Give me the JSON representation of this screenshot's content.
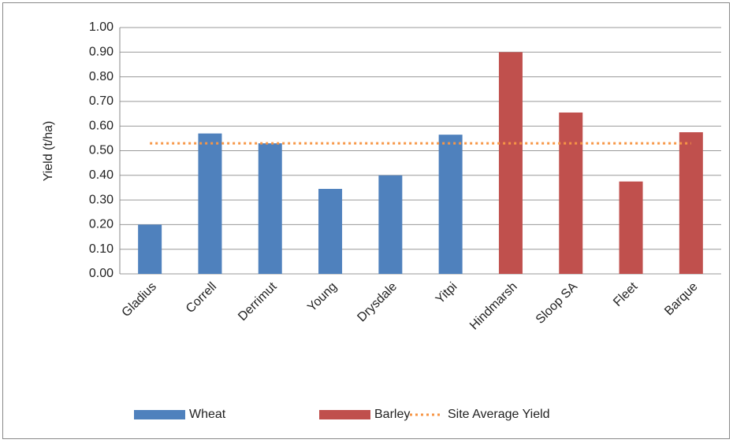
{
  "chart_data": {
    "type": "bar",
    "y_label": "Yield (t/ha)",
    "categories": [
      "Gladius",
      "Correll",
      "Derrimut",
      "Young",
      "Drysdale",
      "Yitpi",
      "Hindmarsh",
      "Sloop SA",
      "Fleet",
      "Barque"
    ],
    "series": [
      {
        "name": "Wheat",
        "type": "bar",
        "color": "#4f81bd",
        "values": [
          0.2,
          0.57,
          0.53,
          0.345,
          0.4,
          0.565,
          null,
          null,
          null,
          null
        ]
      },
      {
        "name": "Barley",
        "type": "bar",
        "color": "#c0504d",
        "values": [
          null,
          null,
          null,
          null,
          null,
          null,
          0.9,
          0.655,
          0.375,
          0.575
        ]
      },
      {
        "name": "Site Average Yield",
        "type": "line",
        "style": "dotted",
        "color": "#f79646",
        "values": [
          0.53,
          0.53,
          0.53,
          0.53,
          0.53,
          0.53,
          0.53,
          0.53,
          0.53,
          0.53
        ]
      }
    ],
    "ylim": [
      0,
      1
    ],
    "yticks": [
      {
        "value": 0,
        "label": "0.00"
      },
      {
        "value": 0.1,
        "label": "0.10"
      },
      {
        "value": 0.2,
        "label": "0.20"
      },
      {
        "value": 0.3,
        "label": "0.30"
      },
      {
        "value": 0.4,
        "label": "0.40"
      },
      {
        "value": 0.5,
        "label": "0.50"
      },
      {
        "value": 0.6,
        "label": "0.60"
      },
      {
        "value": 0.7,
        "label": "0.70"
      },
      {
        "value": 0.8,
        "label": "0.80"
      },
      {
        "value": 0.9,
        "label": "0.90"
      },
      {
        "value": 1,
        "label": "1.00"
      }
    ],
    "grid": true,
    "legend": "bottom"
  }
}
